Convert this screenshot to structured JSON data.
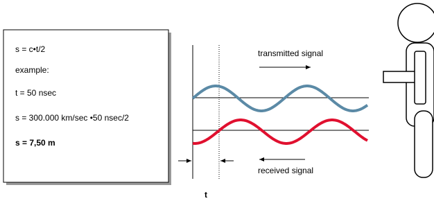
{
  "formula_box": {
    "lines": [
      "s = c•t/2",
      "example:",
      "t = 50 nsec",
      "s = 300.000 km/sec •50 nsec/2",
      "s = 7,50 m"
    ]
  },
  "signals": {
    "transmitted": "transmitted signal",
    "received": "received signal"
  },
  "axis_label": "t"
}
